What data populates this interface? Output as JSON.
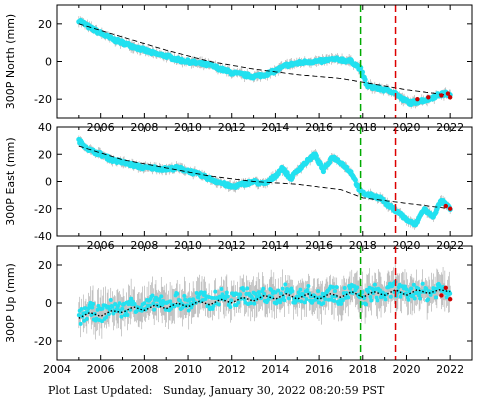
{
  "chart_data": [
    {
      "type": "scatter",
      "ylabel": "300P North (mm)",
      "xlim": [
        2004,
        2023
      ],
      "ylim": [
        -30,
        30
      ],
      "yticks": [
        20,
        0,
        -20
      ],
      "xticks": [
        2006,
        2008,
        2010,
        2012,
        2014,
        2016,
        2018,
        2020,
        2022
      ],
      "series": [
        {
          "role": "observed",
          "x": [
            2005.0,
            2005.5,
            2006.0,
            2006.5,
            2007.0,
            2007.5,
            2008.0,
            2008.5,
            2009.0,
            2009.5,
            2010.0,
            2010.5,
            2011.0,
            2011.5,
            2012.0,
            2012.5,
            2013.0,
            2013.5,
            2014.0,
            2014.5,
            2015.0,
            2015.5,
            2016.0,
            2016.5,
            2017.0,
            2017.5,
            2017.9,
            2018.2,
            2018.6,
            2019.0,
            2019.4,
            2019.8,
            2020.2,
            2020.6,
            2021.0,
            2021.4,
            2021.8,
            2022.0
          ],
          "y": [
            22,
            18,
            15,
            12,
            10,
            8,
            6,
            4,
            3,
            1,
            0,
            -1,
            -2,
            -4,
            -6,
            -7,
            -8,
            -7,
            -5,
            -2,
            -1,
            0,
            0,
            1,
            1,
            0,
            -4,
            -13,
            -14,
            -15,
            -16,
            -20,
            -22,
            -21,
            -20,
            -18,
            -17,
            -18
          ]
        },
        {
          "role": "model",
          "x": [
            2005,
            2007,
            2009,
            2011,
            2013,
            2015,
            2017,
            2018,
            2020,
            2022
          ],
          "y": [
            20,
            13,
            6,
            0,
            -4,
            -7,
            -9,
            -11,
            -15,
            -18
          ]
        },
        {
          "role": "recent",
          "x": [
            2020.5,
            2021.0,
            2021.6,
            2021.9,
            2022.0
          ],
          "y": [
            -20,
            -19,
            -18,
            -17,
            -19
          ]
        }
      ],
      "vlines": [
        {
          "x": 2017.9,
          "color": "#00aa00"
        },
        {
          "x": 2019.5,
          "color": "#dd0000"
        }
      ]
    },
    {
      "type": "scatter",
      "ylabel": "300P East (mm)",
      "xlim": [
        2004,
        2023
      ],
      "ylim": [
        -40,
        40
      ],
      "yticks": [
        40,
        20,
        0,
        -20,
        -40
      ],
      "xticks": [
        2006,
        2008,
        2010,
        2012,
        2014,
        2016,
        2018,
        2020,
        2022
      ],
      "series": [
        {
          "role": "observed",
          "x": [
            2005.0,
            2005.5,
            2006.0,
            2006.5,
            2007.0,
            2007.5,
            2008.0,
            2008.5,
            2009.0,
            2009.5,
            2010.0,
            2010.5,
            2011.0,
            2011.5,
            2012.0,
            2012.5,
            2013.0,
            2013.5,
            2014.0,
            2014.3,
            2014.7,
            2015.0,
            2015.4,
            2015.8,
            2016.2,
            2016.6,
            2017.0,
            2017.5,
            2017.9,
            2018.3,
            2018.8,
            2019.2,
            2019.6,
            2020.0,
            2020.4,
            2020.8,
            2021.2,
            2021.6,
            2022.0
          ],
          "y": [
            30,
            23,
            20,
            16,
            14,
            12,
            10,
            10,
            9,
            10,
            8,
            5,
            2,
            -1,
            -4,
            -2,
            0,
            -2,
            4,
            10,
            2,
            8,
            14,
            20,
            8,
            18,
            14,
            6,
            -8,
            -10,
            -12,
            -18,
            -22,
            -28,
            -32,
            -20,
            -26,
            -14,
            -20
          ]
        },
        {
          "role": "model",
          "x": [
            2005,
            2007,
            2009,
            2011,
            2013,
            2015,
            2016,
            2017,
            2018,
            2020,
            2022
          ],
          "y": [
            26,
            16,
            10,
            4,
            0,
            -2,
            -4,
            -6,
            -12,
            -16,
            -20
          ]
        },
        {
          "role": "recent",
          "x": [
            2021.8,
            2022.0
          ],
          "y": [
            -18,
            -20
          ]
        }
      ],
      "vlines": [
        {
          "x": 2017.9,
          "color": "#00aa00"
        },
        {
          "x": 2019.5,
          "color": "#dd0000"
        }
      ]
    },
    {
      "type": "scatter",
      "ylabel": "300P Up (mm)",
      "xlim": [
        2004,
        2023
      ],
      "ylim": [
        -30,
        30
      ],
      "yticks": [
        20,
        0,
        -20
      ],
      "xticks": [
        2004,
        2006,
        2008,
        2010,
        2012,
        2014,
        2016,
        2018,
        2020,
        2022
      ],
      "series": [
        {
          "role": "observed",
          "x": [
            2005.0,
            2005.5,
            2006.0,
            2006.5,
            2007.0,
            2007.5,
            2008.0,
            2008.5,
            2009.0,
            2009.5,
            2010.0,
            2010.5,
            2011.0,
            2011.5,
            2012.0,
            2012.5,
            2013.0,
            2013.5,
            2014.0,
            2014.5,
            2015.0,
            2015.5,
            2016.0,
            2016.5,
            2017.0,
            2017.5,
            2018.0,
            2018.5,
            2019.0,
            2019.5,
            2020.0,
            2020.5,
            2021.0,
            2021.5,
            2022.0
          ],
          "y": [
            -8,
            -4,
            -6,
            -2,
            -4,
            0,
            -3,
            1,
            -2,
            2,
            -1,
            3,
            0,
            4,
            1,
            5,
            2,
            4,
            3,
            6,
            3,
            5,
            2,
            6,
            3,
            7,
            2,
            6,
            4,
            8,
            4,
            7,
            5,
            8,
            6
          ]
        },
        {
          "role": "model",
          "x": [
            2005.0,
            2005.5,
            2006.0,
            2006.5,
            2007.0,
            2007.5,
            2008.0,
            2008.5,
            2009.0,
            2009.5,
            2010.0,
            2010.5,
            2011.0,
            2011.5,
            2012.0,
            2012.5,
            2013.0,
            2013.5,
            2014.0,
            2014.5,
            2015.0,
            2015.5,
            2016.0,
            2016.5,
            2017.0,
            2017.5,
            2018.0,
            2018.5,
            2019.0,
            2019.5,
            2020.0,
            2020.5,
            2021.0,
            2021.5,
            2022.0
          ],
          "y": [
            -8,
            -5,
            -7,
            -4,
            -5,
            -2,
            -4,
            -1,
            -3,
            0,
            -2,
            1,
            -1,
            2,
            0,
            3,
            1,
            4,
            2,
            5,
            2,
            5,
            2,
            5,
            3,
            6,
            3,
            6,
            4,
            7,
            4,
            7,
            5,
            7,
            6
          ]
        },
        {
          "role": "recent",
          "x": [
            2021.6,
            2021.8,
            2022.0
          ],
          "y": [
            4,
            8,
            2
          ]
        }
      ],
      "vlines": [
        {
          "x": 2017.9,
          "color": "#00aa00"
        },
        {
          "x": 2019.5,
          "color": "#dd0000"
        }
      ]
    }
  ],
  "colors": {
    "observed": "#22e1f0",
    "errorbar": "#a8a8a8",
    "model": "#000000",
    "recent": "#cc0000"
  },
  "footer": {
    "label": "Plot Last Updated:",
    "timestamp": "Sunday, January 30, 2022 08:20:59 PST"
  }
}
